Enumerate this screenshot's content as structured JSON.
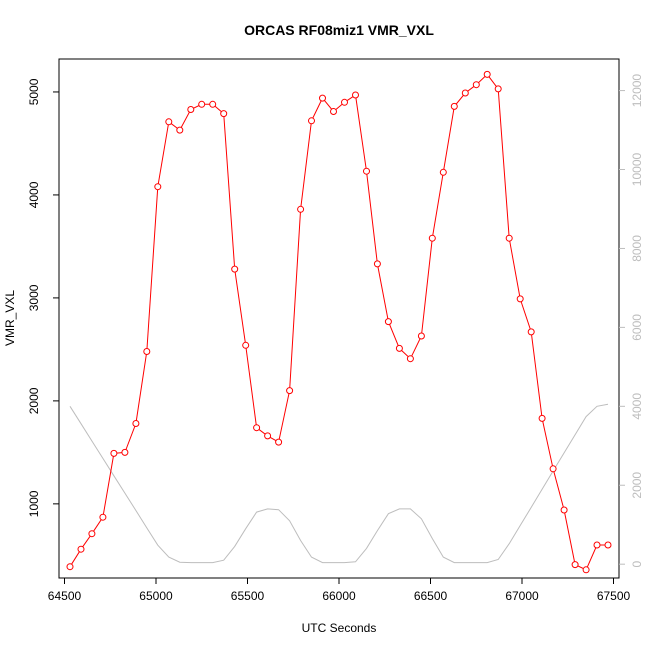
{
  "chart_data": {
    "type": "line",
    "title": "ORCAS RF08miz1 VMR_VXL",
    "xlabel": "UTC Seconds",
    "ylabel": "VMR_VXL",
    "xlim": [
      64470,
      67530
    ],
    "ylim": [
      280,
      5320
    ],
    "y2lim": [
      -350,
      12800
    ],
    "xticks": [
      64500,
      65000,
      65500,
      66000,
      66500,
      67000,
      67500
    ],
    "yticks": [
      1000,
      2000,
      3000,
      4000,
      5000
    ],
    "y2ticks": [
      0,
      2000,
      4000,
      6000,
      8000,
      10000,
      12000
    ],
    "grid": false,
    "legend": "none",
    "series": [
      {
        "color": "#ff0000",
        "axis": "left",
        "marker": "open-circle",
        "x": [
          64530,
          64590,
          64650,
          64710,
          64770,
          64830,
          64890,
          64950,
          65010,
          65070,
          65130,
          65190,
          65250,
          65310,
          65370,
          65430,
          65490,
          65550,
          65610,
          65670,
          65730,
          65790,
          65850,
          65910,
          65970,
          66030,
          66090,
          66150,
          66210,
          66270,
          66330,
          66390,
          66450,
          66510,
          66570,
          66630,
          66690,
          66750,
          66810,
          66870,
          66930,
          66990,
          67050,
          67110,
          67170,
          67230,
          67290,
          67350,
          67410,
          67470
        ],
        "y": [
          390,
          560,
          710,
          870,
          1490,
          1500,
          1780,
          2480,
          4080,
          4710,
          4630,
          4830,
          4880,
          4880,
          4790,
          3280,
          2540,
          1740,
          1660,
          1600,
          2100,
          3860,
          4720,
          4940,
          4810,
          4900,
          4970,
          4230,
          3330,
          2770,
          2510,
          2410,
          2630,
          3580,
          4220,
          4860,
          4990,
          5070,
          5170,
          5030,
          3580,
          2990,
          2670,
          1830,
          1340,
          940,
          410,
          360,
          600,
          600
        ]
      },
      {
        "color": "#bdbdbd",
        "axis": "right",
        "marker": "none",
        "x": [
          64530,
          64590,
          64650,
          64710,
          64770,
          64830,
          64890,
          64950,
          65010,
          65070,
          65130,
          65190,
          65250,
          65310,
          65370,
          65430,
          65490,
          65550,
          65610,
          65670,
          65730,
          65790,
          65850,
          65910,
          65970,
          66030,
          66090,
          66150,
          66210,
          66270,
          66330,
          66390,
          66450,
          66510,
          66570,
          66630,
          66690,
          66750,
          66810,
          66870,
          66930,
          66990,
          67050,
          67110,
          67170,
          67230,
          67290,
          67350,
          67410,
          67470
        ],
        "y": [
          4000,
          3560,
          3120,
          2680,
          2240,
          1800,
          1360,
          920,
          480,
          180,
          50,
          40,
          40,
          40,
          100,
          450,
          900,
          1320,
          1400,
          1380,
          1100,
          600,
          180,
          40,
          40,
          40,
          60,
          400,
          850,
          1280,
          1400,
          1400,
          1150,
          650,
          180,
          40,
          40,
          40,
          40,
          120,
          520,
          980,
          1440,
          1900,
          2360,
          2820,
          3280,
          3740,
          4000,
          4050
        ]
      }
    ]
  }
}
